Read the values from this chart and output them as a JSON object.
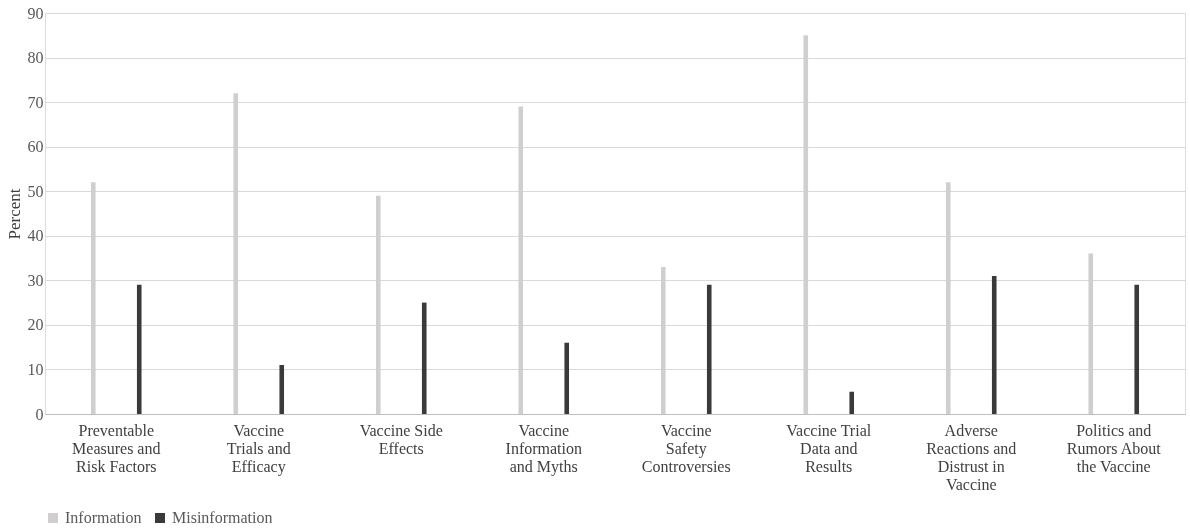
{
  "chart_data": {
    "type": "bar",
    "ylabel": "Percent",
    "categories": [
      "Preventable Measures and Risk Factors",
      "Vaccine Trials and Efficacy",
      "Vaccine Side Effects",
      "Vaccine Information and Myths",
      "Vaccine Safety Controversies",
      "Vaccine Trial Data and Results",
      "Adverse Reactions and Distrust in Vaccine",
      "Politics and Rumors About the Vaccine"
    ],
    "series": [
      {
        "name": "Information",
        "color": "#d0cece",
        "values": [
          52,
          72,
          49,
          69,
          33,
          85,
          52,
          36
        ]
      },
      {
        "name": "Misinformation",
        "color": "#3a3a3a",
        "values": [
          29,
          11,
          25,
          16,
          29,
          5,
          31,
          29
        ]
      }
    ],
    "ylim": [
      0,
      90
    ],
    "yticks": [
      0,
      10,
      20,
      30,
      40,
      50,
      60,
      70,
      80,
      90
    ],
    "grid": "y",
    "legend": "bottom"
  }
}
